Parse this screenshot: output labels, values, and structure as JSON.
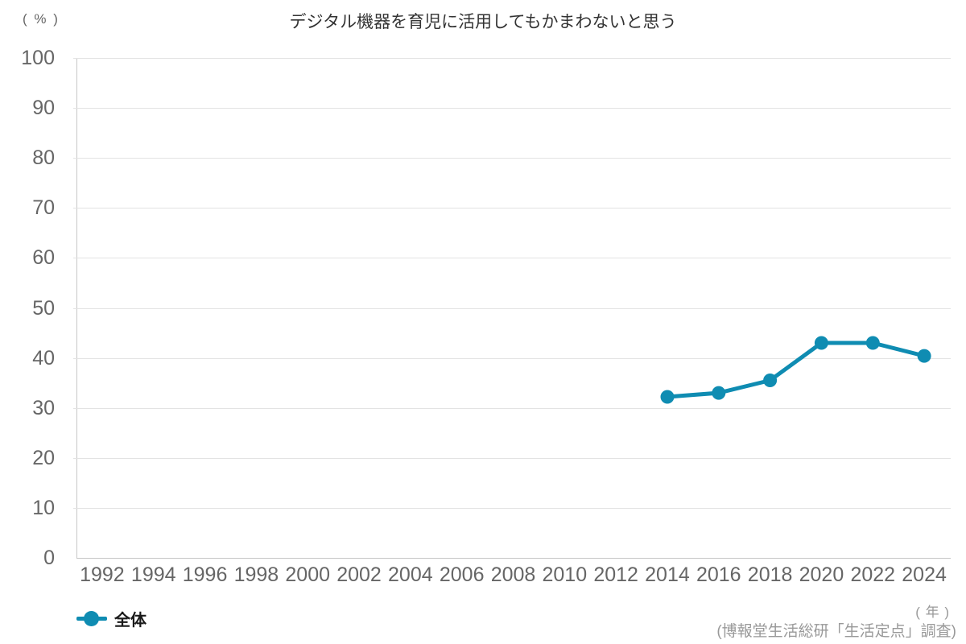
{
  "chart_data": {
    "type": "line",
    "title": "デジタル機器を育児に活用してもかまわないと思う",
    "y_unit_label": "( % )",
    "x_unit_label": "( 年 )",
    "source": "(博報堂生活総研「生活定点」調査)",
    "categories": [
      "1992",
      "1994",
      "1996",
      "1998",
      "2000",
      "2002",
      "2004",
      "2006",
      "2008",
      "2010",
      "2012",
      "2014",
      "2016",
      "2018",
      "2020",
      "2022",
      "2024"
    ],
    "series": [
      {
        "name": "全体",
        "color": "#0f8cb2",
        "values": [
          null,
          null,
          null,
          null,
          null,
          null,
          null,
          null,
          null,
          null,
          null,
          32.2,
          33.0,
          35.5,
          43.0,
          43.0,
          40.4
        ]
      }
    ],
    "ylim": [
      0,
      100
    ],
    "ytick_step": 10,
    "grid": "horizontal",
    "legend_position": "bottom-left"
  },
  "colors": {
    "series": "#0f8cb2",
    "gridline": "#e3e3e3",
    "axis": "#c6c6c6",
    "tick_text": "#666666",
    "title_text": "#333333",
    "muted_text": "#999999"
  }
}
